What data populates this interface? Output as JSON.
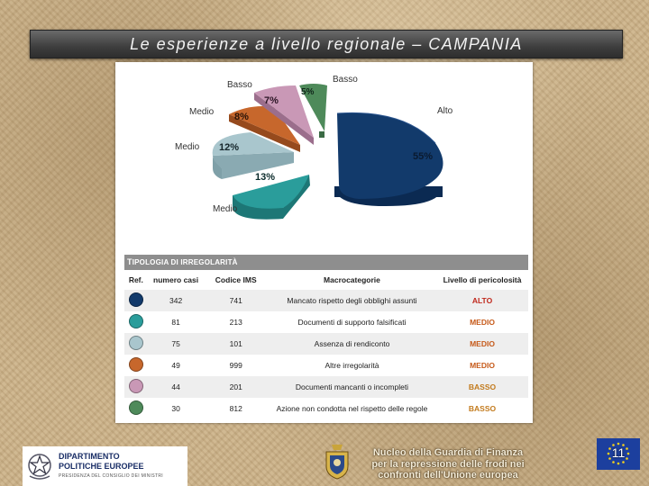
{
  "title": "Le esperienze a livello regionale – CAMPANIA",
  "pie": {
    "slices": [
      {
        "pct": "55%",
        "label": "Alto",
        "color": "#123a6b"
      },
      {
        "pct": "13%",
        "label": "Medio",
        "color": "#2a9d9b"
      },
      {
        "pct": "12%",
        "label": "Medio",
        "color": "#a9c6cd"
      },
      {
        "pct": "8%",
        "label": "Medio",
        "color": "#c7672c"
      },
      {
        "pct": "7%",
        "label": "Basso",
        "color": "#c998b6"
      },
      {
        "pct": "5%",
        "label": "Basso",
        "color": "#4e8a5a"
      }
    ]
  },
  "table": {
    "caption_first": "T",
    "caption_rest": "IPOLOGIA DI IRREGOLARITÀ",
    "headers": [
      "Ref.",
      "numero casi",
      "Codice IMS",
      "Macrocategorie",
      "Livello di pericolosità"
    ],
    "rows": [
      {
        "color": "#123a6b",
        "casi": "342",
        "codice": "741",
        "macro": "Mancato rispetto degli obblighi assunti",
        "livello": "ALTO"
      },
      {
        "color": "#2a9d9b",
        "casi": "81",
        "codice": "213",
        "macro": "Documenti di supporto falsificati",
        "livello": "MEDIO"
      },
      {
        "color": "#a9c6cd",
        "casi": "75",
        "codice": "101",
        "macro": "Assenza di rendiconto",
        "livello": "MEDIO"
      },
      {
        "color": "#c7672c",
        "casi": "49",
        "codice": "999",
        "macro": "Altre irregolarità",
        "livello": "MEDIO"
      },
      {
        "color": "#c998b6",
        "casi": "44",
        "codice": "201",
        "macro": "Documenti mancanti o incompleti",
        "livello": "BASSO"
      },
      {
        "color": "#4e8a5a",
        "casi": "30",
        "codice": "812",
        "macro": "Azione non condotta nel rispetto delle regole",
        "livello": "BASSO"
      }
    ]
  },
  "footer": {
    "dept_line1": "DIPARTIMENTO",
    "dept_line2": "POLITICHE EUROPEE",
    "dept_line3": "PRESIDENZA DEL CONSIGLIO DEI MINISTRI",
    "gdf_line1": "Nucleo della Guardia di Finanza",
    "gdf_line2": "per la repressione delle frodi nei",
    "gdf_line3": "confronti dell'Unione europea",
    "page_number": "11"
  }
}
